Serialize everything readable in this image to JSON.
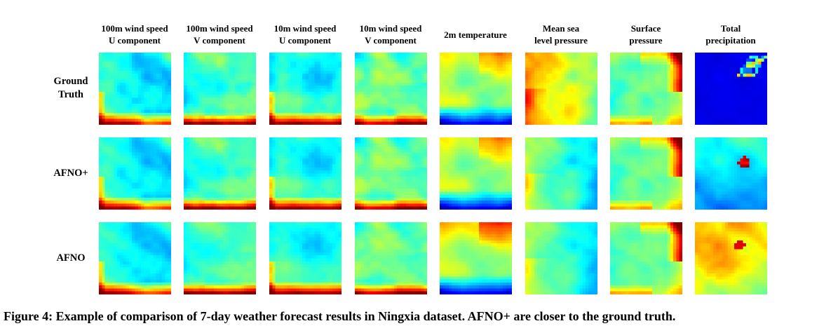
{
  "figure": {
    "columns": [
      "100m wind speed\nU component",
      "100m wind speed\nV component",
      "10m wind speed\nU component",
      "10m wind speed\nV component",
      "2m temperature",
      "Mean sea\nlevel pressure",
      "Surface\npressure",
      "Total\nprecipitation"
    ],
    "rows": [
      "Ground\nTruth",
      "AFNO+",
      "AFNO"
    ],
    "caption": "Figure 4: Example of comparison of 7-day weather forecast results in Ningxia dataset. AFNO+ are closer to the ground truth."
  }
}
